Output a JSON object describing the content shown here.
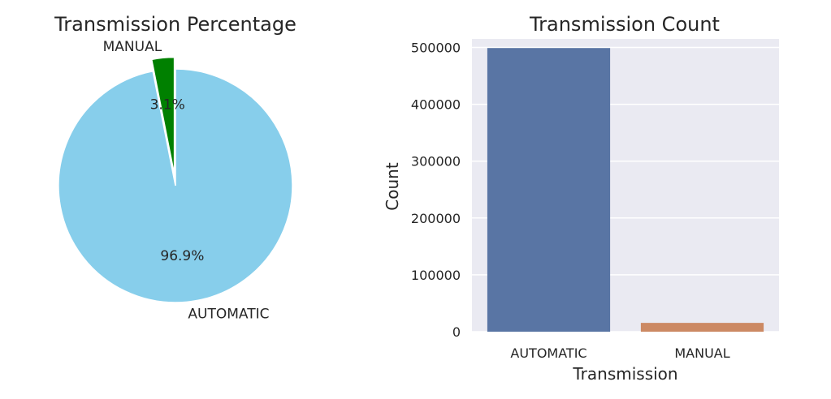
{
  "chart_data": [
    {
      "type": "pie",
      "title": "Transmission Percentage",
      "labels": [
        "AUTOMATIC",
        "MANUAL"
      ],
      "values": [
        96.9,
        3.1
      ],
      "pct_labels": [
        "96.9%",
        "3.1%"
      ],
      "colors": [
        "#87ceeb",
        "#008000"
      ],
      "explode": [
        0,
        0.1
      ]
    },
    {
      "type": "bar",
      "title": "Transmission Count",
      "xlabel": "Transmission",
      "ylabel": "Count",
      "categories": [
        "AUTOMATIC",
        "MANUAL"
      ],
      "values": [
        499000,
        15500
      ],
      "ylim": [
        0,
        515000
      ],
      "yticks": [
        0,
        100000,
        200000,
        300000,
        400000,
        500000
      ],
      "colors": [
        "#5975a4",
        "#cc8963"
      ],
      "grid": true
    }
  ]
}
